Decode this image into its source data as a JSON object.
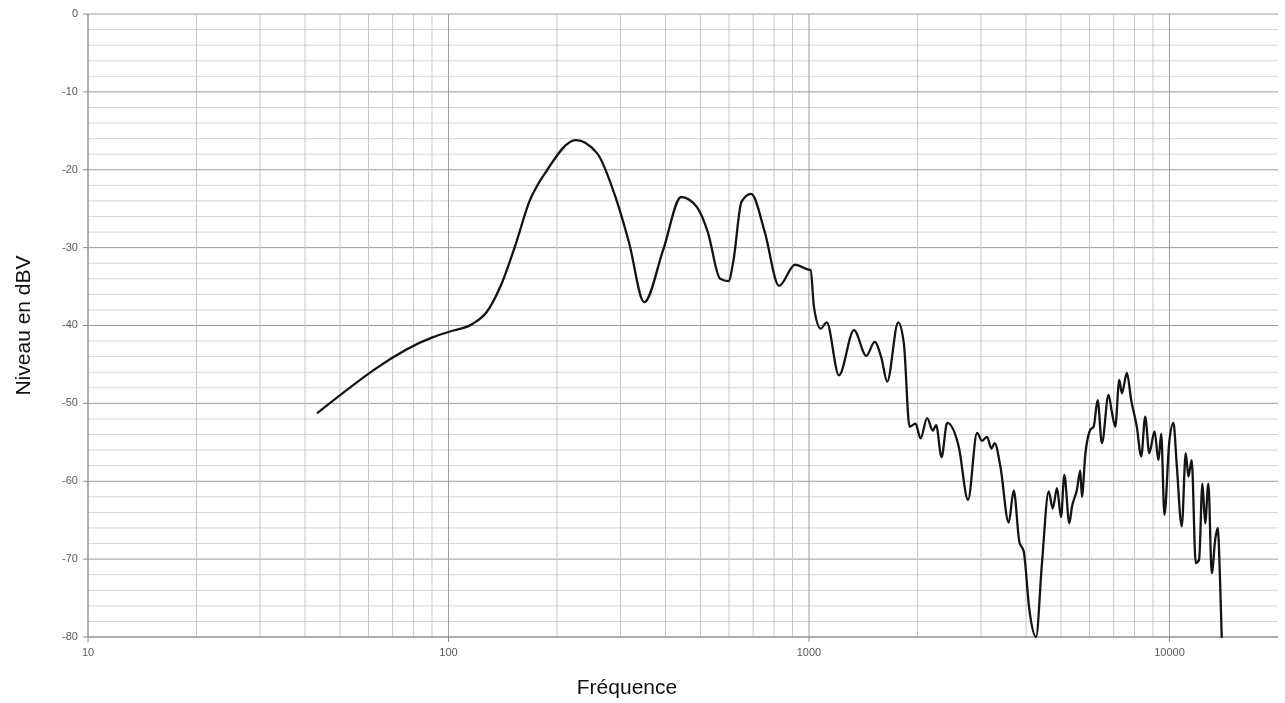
{
  "chart_data": {
    "type": "line",
    "xlabel": "Fréquence",
    "ylabel": "Niveau en dBV",
    "log": "x",
    "xlim": [
      10,
      20000
    ],
    "ylim": [
      -80,
      0
    ],
    "xticks": [
      10,
      {
        "value": 20,
        "label": null
      },
      {
        "value": 30,
        "label": null
      },
      {
        "value": 40,
        "label": null
      },
      {
        "value": 50,
        "label": null
      },
      {
        "value": 60,
        "label": null
      },
      {
        "value": 70,
        "label": null
      },
      {
        "value": 80,
        "label": null
      },
      {
        "value": 90,
        "label": null
      },
      100,
      {
        "value": 200,
        "label": null
      },
      {
        "value": 300,
        "label": null
      },
      {
        "value": 400,
        "label": null
      },
      {
        "value": 500,
        "label": null
      },
      {
        "value": 600,
        "label": null
      },
      {
        "value": 700,
        "label": null
      },
      {
        "value": 800,
        "label": null
      },
      {
        "value": 900,
        "label": null
      },
      1000,
      {
        "value": 2000,
        "label": null
      },
      {
        "value": 3000,
        "label": null
      },
      {
        "value": 4000,
        "label": null
      },
      {
        "value": 5000,
        "label": null
      },
      {
        "value": 6000,
        "label": null
      },
      {
        "value": 7000,
        "label": null
      },
      {
        "value": 8000,
        "label": null
      },
      {
        "value": 9000,
        "label": null
      },
      10000
    ],
    "yticks": [
      0,
      {
        "value": -2,
        "label": null
      },
      {
        "value": -4,
        "label": null
      },
      {
        "value": -6,
        "label": null
      },
      {
        "value": -8,
        "label": null
      },
      -10,
      {
        "value": -12,
        "label": null
      },
      {
        "value": -14,
        "label": null
      },
      {
        "value": -16,
        "label": null
      },
      {
        "value": -18,
        "label": null
      },
      -20,
      {
        "value": -22,
        "label": null
      },
      {
        "value": -24,
        "label": null
      },
      {
        "value": -26,
        "label": null
      },
      {
        "value": -28,
        "label": null
      },
      -30,
      {
        "value": -32,
        "label": null
      },
      {
        "value": -34,
        "label": null
      },
      {
        "value": -36,
        "label": null
      },
      {
        "value": -38,
        "label": null
      },
      -40,
      {
        "value": -42,
        "label": null
      },
      {
        "value": -44,
        "label": null
      },
      {
        "value": -46,
        "label": null
      },
      {
        "value": -48,
        "label": null
      },
      -50,
      {
        "value": -52,
        "label": null
      },
      {
        "value": -54,
        "label": null
      },
      {
        "value": -56,
        "label": null
      },
      {
        "value": -58,
        "label": null
      },
      -60,
      {
        "value": -62,
        "label": null
      },
      {
        "value": -64,
        "label": null
      },
      {
        "value": -66,
        "label": null
      },
      {
        "value": -68,
        "label": null
      },
      -70,
      {
        "value": -72,
        "label": null
      },
      {
        "value": -74,
        "label": null
      },
      {
        "value": -76,
        "label": null
      },
      {
        "value": -78,
        "label": null
      },
      -80
    ],
    "grid": true,
    "line_style": "solid",
    "series": [
      {
        "color": "#141414",
        "x": [
          43.4,
          90.6,
          100.5,
          116.5,
          127.5,
          139.6,
          153,
          167.6,
          188,
          225.5,
          258.5,
          290,
          317,
          349,
          394,
          442,
          489,
          524,
          567,
          598,
          617,
          650,
          691,
          754,
          826,
          915,
          991,
          1011,
          1032,
          1078,
          1120,
          1211,
          1333,
          1442,
          1521,
          1589,
          1648,
          1768,
          1833,
          1901,
          1975,
          2039,
          2127,
          2206,
          2253,
          2332,
          2417,
          2604,
          2762,
          2926,
          3020,
          3119,
          3207,
          3274,
          3396,
          3581,
          3697,
          3834,
          3941,
          4086,
          4264,
          4429,
          4624,
          4743,
          4875,
          5002,
          5109,
          5274,
          5363,
          5537,
          5656,
          5715,
          5840,
          6031,
          6160,
          6320,
          6495,
          6776,
          6920,
          7073,
          7256,
          7379,
          7617,
          7832,
          8117,
          8348,
          8566,
          8788,
          9088,
          9322,
          9484,
          9683,
          9980,
          10255,
          10475,
          10815,
          11095,
          11287,
          11525,
          11826,
          12080,
          12340,
          12560,
          12820,
          13100,
          13390,
          13610,
          13820,
          13960
        ],
        "values": [
          -51.2,
          -41.5,
          -40.8,
          -39.8,
          -38.3,
          -34.9,
          -29.8,
          -24.1,
          -20.0,
          -16.2,
          -17.9,
          -23.4,
          -29.4,
          -37.0,
          -30.3,
          -23.5,
          -24.8,
          -28.0,
          -34.0,
          -34.3,
          -31.7,
          -24.1,
          -23.1,
          -28.0,
          -34.9,
          -32.2,
          -32.8,
          -32.9,
          -37.6,
          -40.4,
          -39.6,
          -46.4,
          -40.6,
          -43.9,
          -42.1,
          -44.2,
          -47.2,
          -39.6,
          -42.3,
          -53.0,
          -52.6,
          -54.5,
          -51.9,
          -53.5,
          -52.8,
          -56.9,
          -52.5,
          -55.6,
          -62.4,
          -53.8,
          -54.8,
          -54.3,
          -55.8,
          -55.1,
          -58.1,
          -65.3,
          -61.2,
          -67.8,
          -69.0,
          -76.5,
          -80,
          -70.5,
          -61.3,
          -63.5,
          -60.9,
          -64.6,
          -59.2,
          -65.4,
          -63.3,
          -61.1,
          -58.6,
          -62.0,
          -56.6,
          -53.4,
          -53.0,
          -49.6,
          -55.1,
          -48.9,
          -51.1,
          -53.0,
          -47.0,
          -48.7,
          -46.1,
          -49.6,
          -53.0,
          -56.8,
          -51.7,
          -56.4,
          -53.6,
          -57.3,
          -53.9,
          -64.3,
          -55.1,
          -52.5,
          -57.9,
          -65.8,
          -56.4,
          -59.4,
          -57.3,
          -70.5,
          -70.1,
          -60.3,
          -65.4,
          -60.3,
          -71.8,
          -67.5,
          -66.0,
          -73.1,
          -80
        ]
      }
    ]
  }
}
